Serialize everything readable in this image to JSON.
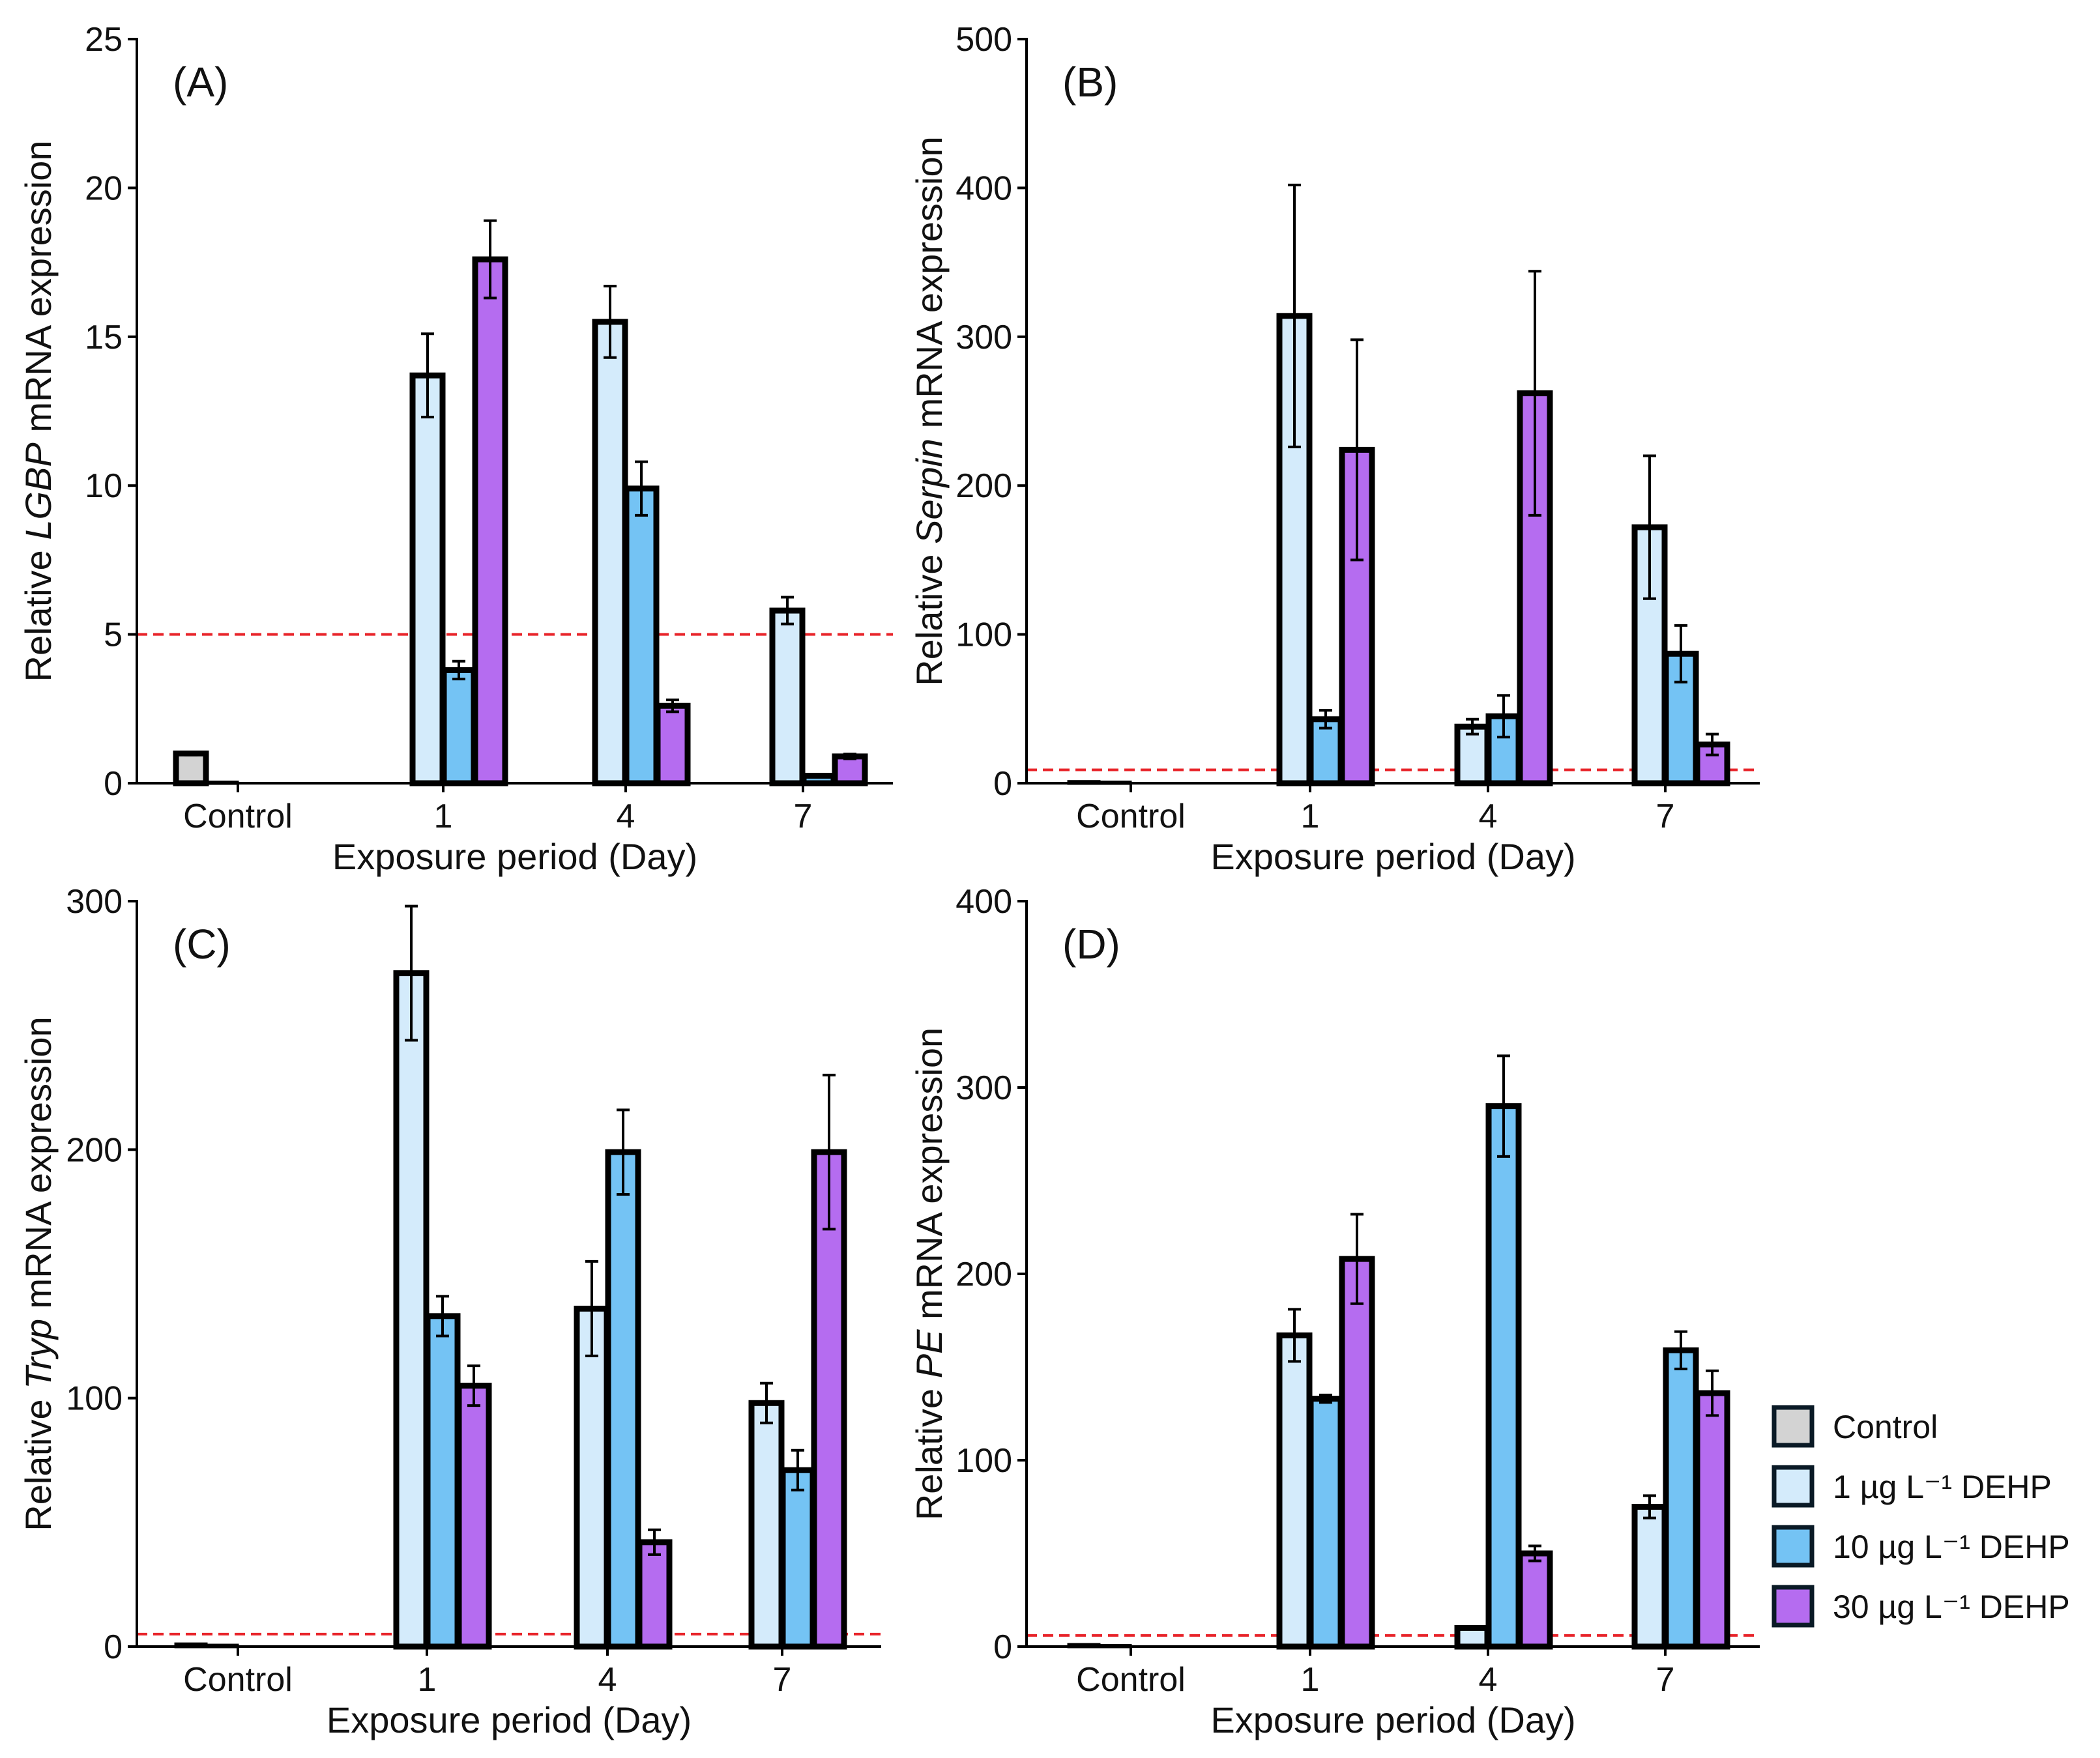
{
  "chart_data": [
    {
      "type": "bar",
      "panel_label": "(A)",
      "ylabel_prefix": "Relative ",
      "gene": "LGBP",
      "ylabel_suffix": " mRNA expression",
      "xlabel": "Exposure period (Day)",
      "categories": [
        "Control",
        "1",
        "4",
        "7"
      ],
      "yticks": [
        "0",
        "5",
        "10",
        "15",
        "20",
        "25"
      ],
      "ylim": [
        0,
        25
      ],
      "reference_line": 5,
      "series": [
        {
          "name": "Control",
          "values": [
            1.0,
            null,
            null,
            null
          ],
          "errors": [
            0.05,
            null,
            null,
            null
          ]
        },
        {
          "name": "1 µg L⁻¹ DEHP",
          "values": [
            0.02,
            13.7,
            15.5,
            5.8
          ],
          "errors": [
            0,
            1.4,
            1.2,
            0.45
          ]
        },
        {
          "name": "10 µg L⁻¹ DEHP",
          "values": [
            null,
            3.8,
            9.9,
            0.25
          ],
          "errors": [
            null,
            0.3,
            0.9,
            0.05
          ]
        },
        {
          "name": "30 µg L⁻¹ DEHP",
          "values": [
            null,
            17.6,
            2.6,
            0.9
          ],
          "errors": [
            null,
            1.3,
            0.2,
            0.08
          ]
        }
      ]
    },
    {
      "type": "bar",
      "panel_label": "(B)",
      "ylabel_prefix": "Relative ",
      "gene": "Serpin",
      "ylabel_suffix": " mRNA expression",
      "xlabel": "Exposure period (Day)",
      "categories": [
        "Control",
        "1",
        "4",
        "7"
      ],
      "yticks": [
        "0",
        "100",
        "200",
        "300",
        "400",
        "500"
      ],
      "ylim": [
        0,
        500
      ],
      "reference_line": 9,
      "series": [
        {
          "name": "Control",
          "values": [
            1.0,
            null,
            null,
            null
          ],
          "errors": [
            0,
            null,
            null,
            null
          ]
        },
        {
          "name": "1 µg L⁻¹ DEHP",
          "values": [
            0.5,
            314,
            38,
            172
          ],
          "errors": [
            0,
            88,
            5,
            48
          ]
        },
        {
          "name": "10 µg L⁻¹ DEHP",
          "values": [
            null,
            43,
            45,
            87
          ],
          "errors": [
            null,
            6,
            14,
            19
          ]
        },
        {
          "name": "30 µg L⁻¹ DEHP",
          "values": [
            null,
            224,
            262,
            26
          ],
          "errors": [
            null,
            74,
            82,
            7
          ]
        }
      ]
    },
    {
      "type": "bar",
      "panel_label": "(C)",
      "ylabel_prefix": "Relative ",
      "gene": "Tryp",
      "ylabel_suffix": " mRNA expression",
      "xlabel": "Exposure period (Day)",
      "categories": [
        "Control",
        "1",
        "4",
        "7"
      ],
      "yticks": [
        "0",
        "100",
        "200",
        "300"
      ],
      "ylim": [
        0,
        300
      ],
      "reference_line": 5,
      "series": [
        {
          "name": "Control",
          "values": [
            1.0,
            null,
            null,
            null
          ],
          "errors": [
            0,
            null,
            null,
            null
          ]
        },
        {
          "name": "1 µg L⁻¹ DEHP",
          "values": [
            0.5,
            271,
            136,
            98
          ],
          "errors": [
            0,
            27,
            19,
            8
          ]
        },
        {
          "name": "10 µg L⁻¹ DEHP",
          "values": [
            null,
            133,
            199,
            71
          ],
          "errors": [
            null,
            8,
            17,
            8
          ]
        },
        {
          "name": "30 µg L⁻¹ DEHP",
          "values": [
            null,
            105,
            42,
            199
          ],
          "errors": [
            null,
            8,
            5,
            31
          ]
        }
      ]
    },
    {
      "type": "bar",
      "panel_label": "(D)",
      "ylabel_prefix": "Relative ",
      "gene": "PE",
      "ylabel_suffix": " mRNA expression",
      "xlabel": "Exposure period (Day)",
      "categories": [
        "Control",
        "1",
        "4",
        "7"
      ],
      "yticks": [
        "0",
        "100",
        "200",
        "300",
        "400"
      ],
      "ylim": [
        0,
        400
      ],
      "reference_line": 6,
      "series": [
        {
          "name": "Control",
          "values": [
            1.0,
            null,
            null,
            null
          ],
          "errors": [
            0,
            null,
            null,
            null
          ]
        },
        {
          "name": "1 µg L⁻¹ DEHP",
          "values": [
            0.5,
            167,
            10,
            75
          ],
          "errors": [
            0,
            14,
            0,
            6
          ]
        },
        {
          "name": "10 µg L⁻¹ DEHP",
          "values": [
            null,
            133,
            290,
            159
          ],
          "errors": [
            null,
            2,
            27,
            10
          ]
        },
        {
          "name": "30 µg L⁻¹ DEHP",
          "values": [
            null,
            208,
            50,
            136
          ],
          "errors": [
            null,
            24,
            4,
            12
          ]
        }
      ]
    }
  ],
  "legend": {
    "position": "right",
    "items": [
      {
        "label": "Control",
        "color": "#d3d3d3"
      },
      {
        "label": "1 µg L⁻¹ DEHP",
        "color": "#d4ebfb"
      },
      {
        "label": "10 µg L⁻¹ DEHP",
        "color": "#74c3f4"
      },
      {
        "label": "30 µg L⁻¹ DEHP",
        "color": "#b56cf0"
      }
    ]
  },
  "colors": {
    "control": "#d3d3d3",
    "dose1": "#d4ebfb",
    "dose10": "#74c3f4",
    "dose30": "#b56cf0",
    "reference_line": "#e8242a",
    "outline": "#000000"
  }
}
